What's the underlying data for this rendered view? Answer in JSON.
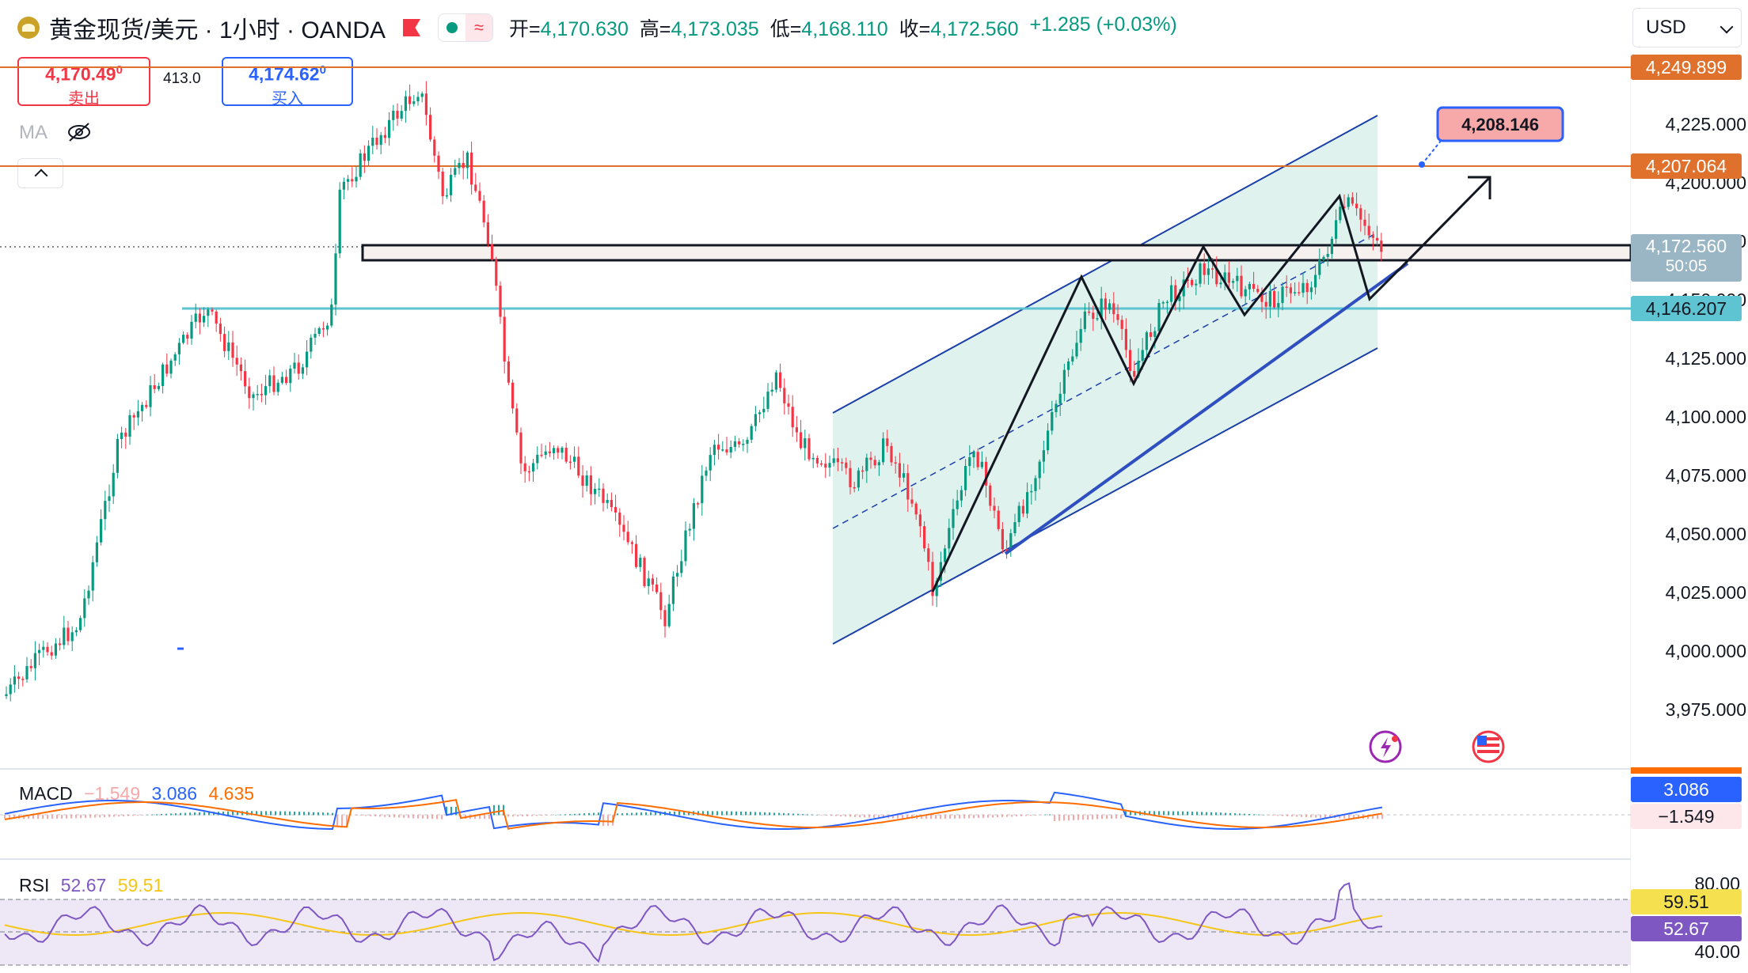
{
  "header": {
    "symbol_title": "黄金现货/美元 · 1小时 · OANDA",
    "ohlc": [
      {
        "label": "开=",
        "value": "4,170.630"
      },
      {
        "label": "高=",
        "value": "4,173.035"
      },
      {
        "label": "低=",
        "value": "4,168.110"
      },
      {
        "label": "收=",
        "value": "4,172.560"
      }
    ],
    "change": "+1.285 (+0.03%)",
    "currency": "USD"
  },
  "trade": {
    "sell_price": "4,170.49",
    "sell_price_sup": "0",
    "sell_label": "卖出",
    "spread": "413.0",
    "buy_price": "4,174.62",
    "buy_price_sup": "0",
    "buy_label": "买入"
  },
  "ma_label": "MA",
  "price_axis": {
    "ticks": [
      "4,225.000",
      "4,200.000",
      "4,175.000",
      "4,150.000",
      "4,125.000",
      "4,100.000",
      "4,075.000",
      "4,050.000",
      "4,025.000",
      "4,000.000",
      "3,975.000"
    ],
    "tags": {
      "level_high": "4,249.899",
      "level_upper": "4,207.064",
      "current": "4,172.560",
      "countdown": "50:05",
      "level_support": "4,146.207"
    }
  },
  "annotation": {
    "target": "4,208.146"
  },
  "macd": {
    "label": "MACD",
    "hist": "−1.549",
    "macd": "3.086",
    "signal": "4.635",
    "tag_macd": "3.086",
    "tag_hist": "−1.549"
  },
  "rsi": {
    "label": "RSI",
    "value": "52.67",
    "ma": "59.51",
    "axis_80": "80.00",
    "axis_40": "40.00",
    "tag_ma": "59.51",
    "tag_value": "52.67"
  },
  "colors": {
    "up": "#089981",
    "down": "#f23645",
    "level_line": "#e0712c",
    "support_line": "#5ec4d1",
    "channel": "#1a3fa8",
    "channel_fill": "#d7efea",
    "target_box": "#f7a8a8"
  }
}
